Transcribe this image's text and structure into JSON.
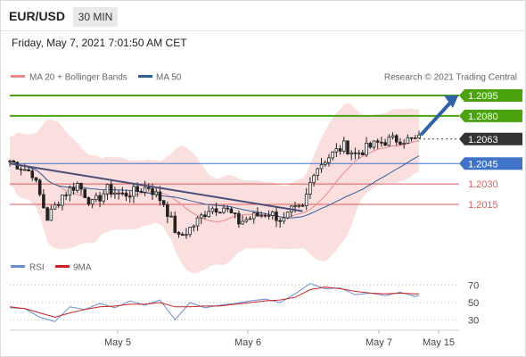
{
  "header": {
    "pair": "EUR/USD",
    "timeframe": "30 MIN"
  },
  "date_line": "Friday, May 7, 2021 7:01:50 AM CET",
  "legend": {
    "ma20_label": "MA 20 + Bollinger Bands",
    "ma50_label": "MA 50",
    "copyright": "Research © 2021 Trading Central"
  },
  "rsi_legend": {
    "rsi_label": "RSI",
    "ma_label": "9MA"
  },
  "colors": {
    "resistance": "#4aa30f",
    "support": "#e05a5a",
    "pivot": "#3f73c8",
    "last": "#333333",
    "ma20": "#e88a8a",
    "band_fill": "#fbdede",
    "ma50": "#2e5f9e",
    "trendline": "#4a4f7a",
    "arrow": "#2f62a8",
    "candle": "#222222",
    "rsi": "#6b8fd6",
    "rsi_ma": "#cc2222"
  },
  "chart_data": [
    {
      "type": "candlestick",
      "title": "EUR/USD",
      "x_ticks": [
        "May 5",
        "May 6",
        "May 7",
        "May 15"
      ],
      "ylim": [
        1.1975,
        1.211
      ],
      "levels": [
        {
          "value": "1.2095",
          "kind": "resistance"
        },
        {
          "value": "1.2080",
          "kind": "resistance"
        },
        {
          "value": "1.2063",
          "kind": "last"
        },
        {
          "value": "1.2045",
          "kind": "pivot"
        },
        {
          "value": "1.2030",
          "kind": "support"
        },
        {
          "value": "1.2015",
          "kind": "support"
        }
      ],
      "series": [
        {
          "name": "MA 20 + Bollinger Bands",
          "kind": "moving-average-with-bands"
        },
        {
          "name": "MA 50",
          "kind": "moving-average"
        }
      ],
      "close_path": [
        [
          0,
          1.2047
        ],
        [
          6,
          1.2038
        ],
        [
          10,
          1.2005
        ],
        [
          14,
          1.2022
        ],
        [
          18,
          1.203
        ],
        [
          22,
          1.2015
        ],
        [
          26,
          1.2026
        ],
        [
          30,
          1.2022
        ],
        [
          34,
          1.2025
        ],
        [
          37,
          1.2028
        ],
        [
          41,
          1.2016
        ],
        [
          45,
          1.199
        ],
        [
          49,
          1.2
        ],
        [
          53,
          1.2012
        ],
        [
          57,
          1.2013
        ],
        [
          61,
          1.2002
        ],
        [
          65,
          1.2006
        ],
        [
          69,
          1.2009
        ],
        [
          73,
          1.2003
        ],
        [
          75,
          1.201
        ],
        [
          78,
          1.2012
        ],
        [
          81,
          1.204
        ],
        [
          84,
          1.2048
        ],
        [
          86,
          1.2052
        ],
        [
          89,
          1.2058
        ],
        [
          92,
          1.2052
        ],
        [
          95,
          1.2056
        ],
        [
          98,
          1.206
        ],
        [
          101,
          1.2062
        ],
        [
          104,
          1.2063
        ],
        [
          107,
          1.2062
        ],
        [
          109,
          1.2063
        ]
      ]
    },
    {
      "type": "line",
      "title": "RSI",
      "ylim": [
        20,
        80
      ],
      "y_ticks": [
        "70",
        "50",
        "30"
      ],
      "series": [
        {
          "name": "RSI",
          "points": [
            [
              0,
              44
            ],
            [
              4,
              43
            ],
            [
              8,
              33
            ],
            [
              12,
              28
            ],
            [
              16,
              45
            ],
            [
              20,
              42
            ],
            [
              24,
              49
            ],
            [
              28,
              44
            ],
            [
              32,
              52
            ],
            [
              36,
              47
            ],
            [
              40,
              53
            ],
            [
              44,
              30
            ],
            [
              48,
              50
            ],
            [
              52,
              44
            ],
            [
              56,
              47
            ],
            [
              60,
              49
            ],
            [
              64,
              52
            ],
            [
              68,
              54
            ],
            [
              72,
              50
            ],
            [
              76,
              60
            ],
            [
              80,
              72
            ],
            [
              84,
              66
            ],
            [
              88,
              67
            ],
            [
              92,
              59
            ],
            [
              96,
              61
            ],
            [
              100,
              58
            ],
            [
              104,
              62
            ],
            [
              108,
              57
            ],
            [
              109,
              58
            ]
          ]
        },
        {
          "name": "9MA",
          "points": [
            [
              0,
              45
            ],
            [
              4,
              43
            ],
            [
              8,
              38
            ],
            [
              12,
              33
            ],
            [
              16,
              38
            ],
            [
              20,
              42
            ],
            [
              24,
              45
            ],
            [
              28,
              46
            ],
            [
              32,
              48
            ],
            [
              36,
              48
            ],
            [
              40,
              50
            ],
            [
              44,
              45
            ],
            [
              48,
              45
            ],
            [
              52,
              46
            ],
            [
              56,
              46
            ],
            [
              60,
              48
            ],
            [
              64,
              50
            ],
            [
              68,
              52
            ],
            [
              72,
              53
            ],
            [
              76,
              56
            ],
            [
              80,
              65
            ],
            [
              84,
              68
            ],
            [
              88,
              66
            ],
            [
              92,
              63
            ],
            [
              96,
              61
            ],
            [
              100,
              60
            ],
            [
              104,
              61
            ],
            [
              108,
              60
            ],
            [
              109,
              60
            ]
          ]
        }
      ]
    }
  ]
}
